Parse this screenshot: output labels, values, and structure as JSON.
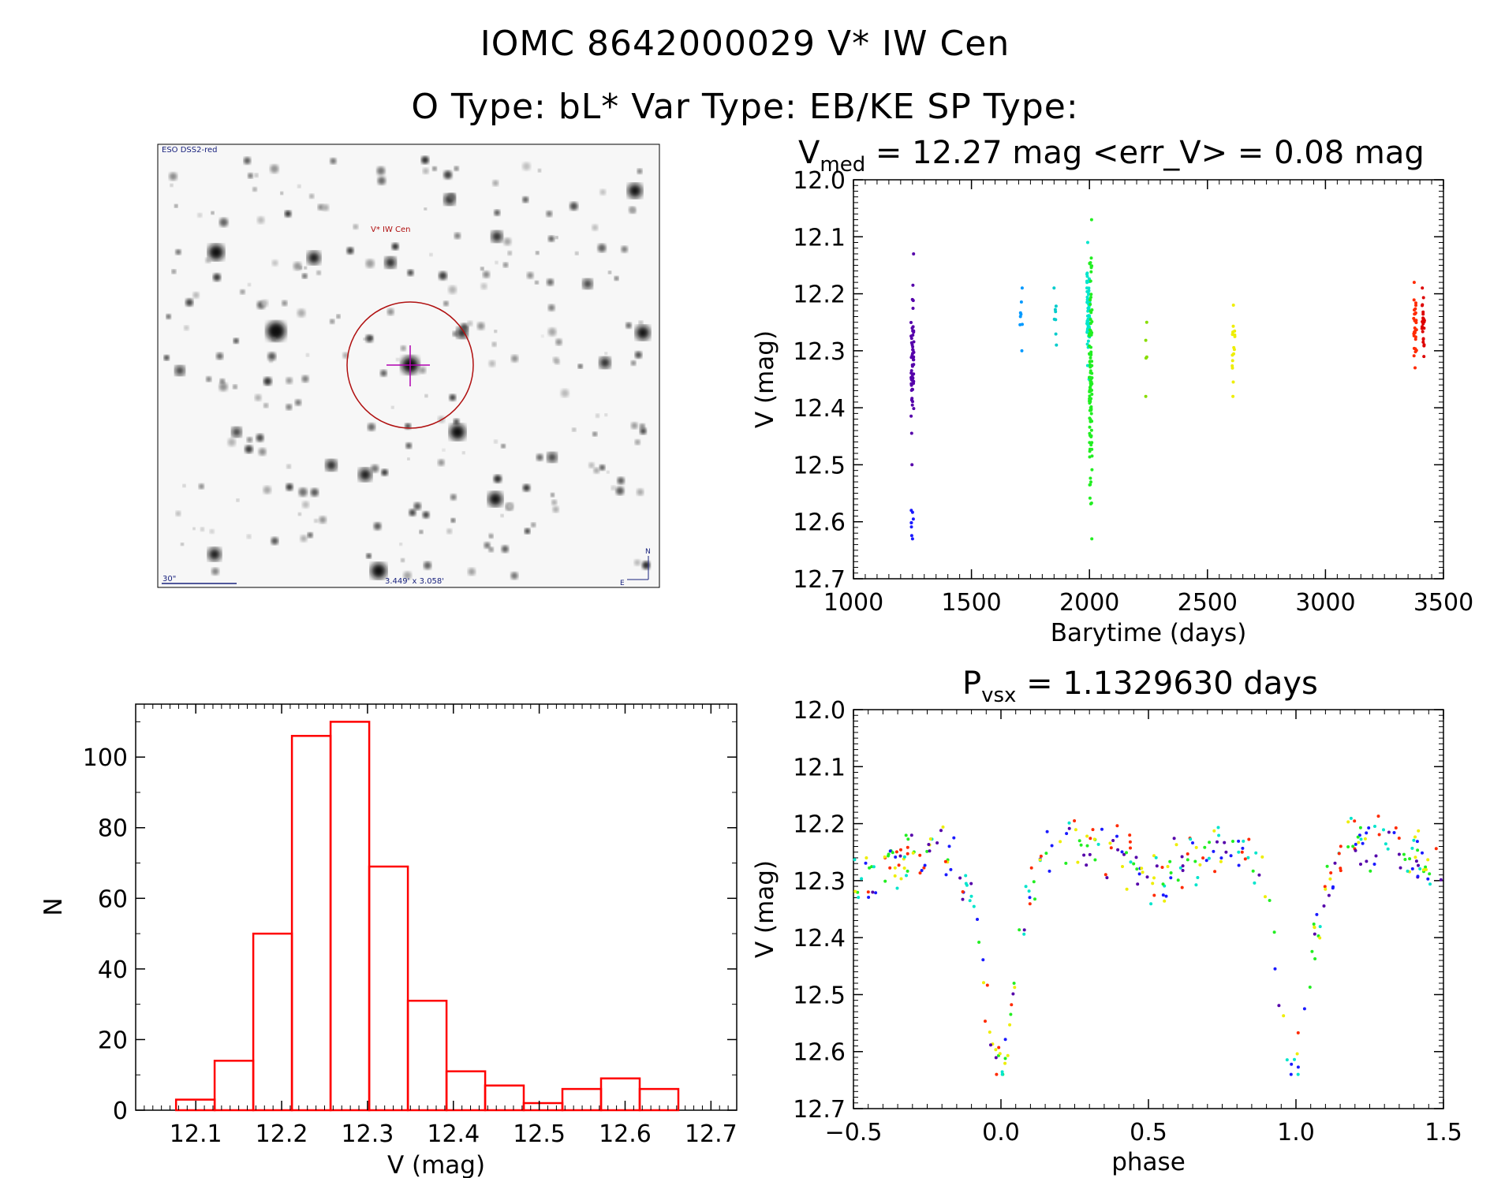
{
  "header": {
    "line1": "IOMC 8642000029   V* IW Cen",
    "line2": "O Type: bL*  Var Type: EB/KE  SP Type:"
  },
  "colors": {
    "hist": "#ff0000",
    "axes": "#000000"
  },
  "image_panel": {
    "survey_label": "ESO DSS2-red",
    "target_label": "V* IW Cen",
    "scale_label": "30\"",
    "size_label": "3.449' x 3.058'",
    "compass_n": "N",
    "compass_e": "E"
  },
  "chart_data": [
    {
      "name": "light-curve",
      "type": "scatter",
      "title_main": "V",
      "title_sub": "med",
      "title_rest": " = 12.27 mag <err_V> = 0.08 mag",
      "xlabel": "Barytime (days)",
      "ylabel": "V (mag)",
      "xlim": [
        1000,
        3500
      ],
      "ylim": [
        12.7,
        12.0
      ],
      "xticks": [
        "1000",
        "1500",
        "2000",
        "2500",
        "3000",
        "3500"
      ],
      "yticks": [
        "12.0",
        "12.1",
        "12.2",
        "12.3",
        "12.4",
        "12.5",
        "12.6",
        "12.7"
      ],
      "groups": [
        {
          "x": 1250,
          "y_min": 12.13,
          "y_max": 12.5,
          "count": 55,
          "color": "#5500aa"
        },
        {
          "x": 1250,
          "y_min": 12.58,
          "y_max": 12.63,
          "count": 8,
          "color": "#1a1aff"
        },
        {
          "x": 1710,
          "y_min": 12.19,
          "y_max": 12.3,
          "count": 8,
          "color": "#0099ff"
        },
        {
          "x": 1855,
          "y_min": 12.19,
          "y_max": 12.29,
          "count": 8,
          "color": "#00cccc"
        },
        {
          "x": 1995,
          "y_min": 12.11,
          "y_max": 12.35,
          "count": 60,
          "color": "#00e5cc"
        },
        {
          "x": 2005,
          "y_min": 12.07,
          "y_max": 12.63,
          "count": 110,
          "color": "#22ee22"
        },
        {
          "x": 2240,
          "y_min": 12.25,
          "y_max": 12.38,
          "count": 5,
          "color": "#88dd00"
        },
        {
          "x": 2610,
          "y_min": 12.22,
          "y_max": 12.38,
          "count": 16,
          "color": "#eeee00"
        },
        {
          "x": 3380,
          "y_min": 12.18,
          "y_max": 12.33,
          "count": 30,
          "color": "#ff2a00"
        },
        {
          "x": 3415,
          "y_min": 12.19,
          "y_max": 12.31,
          "count": 25,
          "color": "#dd0000"
        }
      ]
    },
    {
      "name": "histogram",
      "type": "bar",
      "xlabel": "V (mag)",
      "ylabel": "N",
      "xlim": [
        12.03,
        12.73
      ],
      "ylim": [
        0,
        115
      ],
      "bin_width": 0.045,
      "bin_starts": [
        12.077,
        12.122,
        12.167,
        12.212,
        12.257,
        12.302,
        12.347,
        12.392,
        12.437,
        12.482,
        12.527,
        12.572,
        12.617
      ],
      "values": [
        3,
        14,
        50,
        106,
        110,
        69,
        31,
        11,
        7,
        2,
        6,
        9,
        6
      ],
      "xticks": [
        "12.1",
        "12.2",
        "12.3",
        "12.4",
        "12.5",
        "12.6",
        "12.7"
      ],
      "yticks": [
        "0",
        "20",
        "40",
        "60",
        "80",
        "100"
      ]
    },
    {
      "name": "phase-curve",
      "type": "scatter",
      "title_main": "P",
      "title_sub": "vsx",
      "title_rest": " = 1.1329630 days",
      "xlabel": "phase",
      "ylabel": "V (mag)",
      "xlim": [
        -0.5,
        1.5
      ],
      "ylim": [
        12.7,
        12.0
      ],
      "xticks": [
        "−0.5",
        "0.0",
        "0.5",
        "1.0",
        "1.5"
      ],
      "yticks": [
        "12.0",
        "12.1",
        "12.2",
        "12.3",
        "12.4",
        "12.5",
        "12.6",
        "12.7"
      ],
      "curve": [
        [
          -0.5,
          12.3
        ],
        [
          -0.4,
          12.27
        ],
        [
          -0.3,
          12.25
        ],
        [
          -0.2,
          12.24
        ],
        [
          -0.15,
          12.26
        ],
        [
          -0.1,
          12.33
        ],
        [
          -0.06,
          12.47
        ],
        [
          -0.03,
          12.58
        ],
        [
          0.0,
          12.62
        ],
        [
          0.03,
          12.55
        ],
        [
          0.06,
          12.4
        ],
        [
          0.1,
          12.31
        ],
        [
          0.15,
          12.25
        ],
        [
          0.2,
          12.22
        ],
        [
          0.3,
          12.24
        ],
        [
          0.4,
          12.25
        ],
        [
          0.5,
          12.3
        ]
      ],
      "colors": [
        "#22ee22",
        "#00e5cc",
        "#1a1aff",
        "#5500aa",
        "#ff2a00",
        "#eeee00"
      ]
    }
  ]
}
